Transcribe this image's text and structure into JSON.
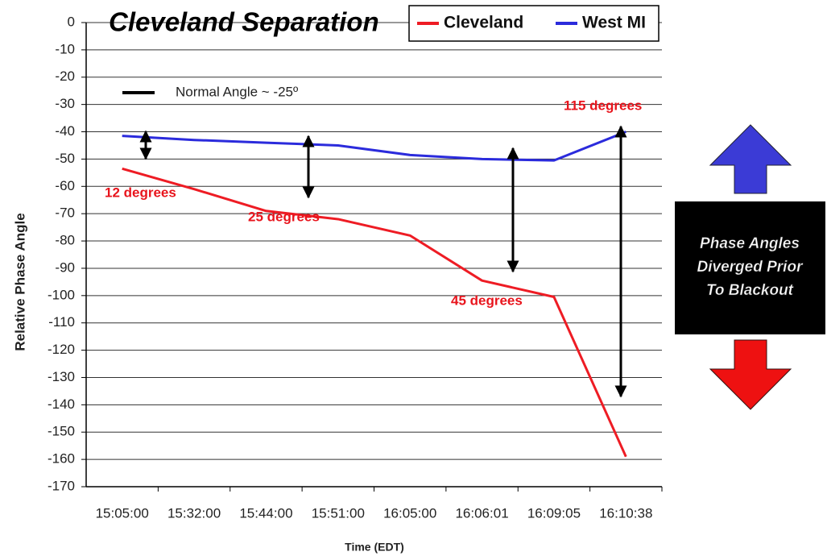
{
  "chart_data": {
    "type": "line",
    "title": "Cleveland Separation",
    "x_label": "Time (EDT)",
    "y_label": "Relative Phase Angle",
    "categories": [
      "15:05:00",
      "15:32:00",
      "15:44:00",
      "15:51:00",
      "16:05:00",
      "16:06:01",
      "16:09:05",
      "16:10:38"
    ],
    "series": [
      {
        "name": "Cleveland",
        "color": "#ee1c24",
        "values": [
          -53.5,
          -61,
          -69,
          -72,
          -78,
          -94.5,
          -100.5,
          -159
        ]
      },
      {
        "name": "West MI",
        "color": "#2b2bdc",
        "values": [
          -41.5,
          -43,
          -44,
          -45,
          -48.5,
          -50,
          -50.5,
          -40
        ]
      }
    ],
    "ylim": [
      -170,
      0
    ],
    "yticks": [
      0,
      -10,
      -20,
      -30,
      -40,
      -50,
      -60,
      -70,
      -80,
      -90,
      -100,
      -110,
      -120,
      -130,
      -140,
      -150,
      -160,
      -170
    ],
    "grid": true,
    "legend": "top-right",
    "annotations": [
      "12 degrees",
      "25 degrees",
      "45 degrees",
      "115 degrees",
      "Normal Angle ~ -25º"
    ],
    "side_box": [
      "Phase Angles",
      "Diverged Prior",
      "To Blackout"
    ]
  }
}
